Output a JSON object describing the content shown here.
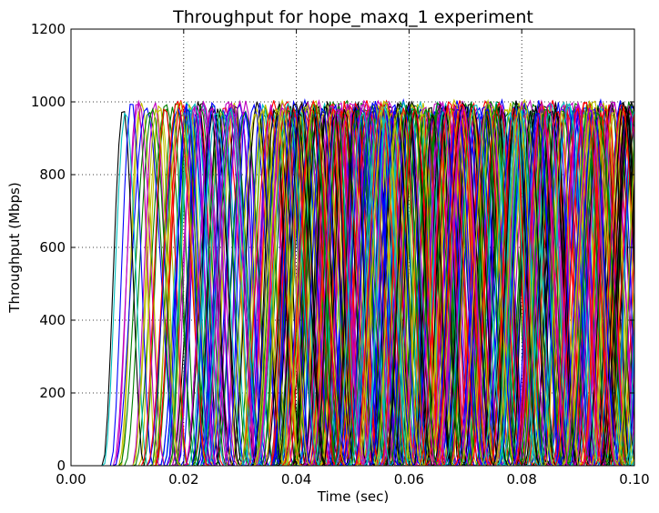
{
  "chart_data": {
    "type": "line",
    "title": "Throughput for hope_maxq_1 experiment",
    "xlabel": "Time (sec)",
    "ylabel": "Throughput (Mbps)",
    "xlim": [
      0.0,
      0.1
    ],
    "ylim": [
      0,
      1200
    ],
    "x_ticks": [
      "0.00",
      "0.02",
      "0.04",
      "0.06",
      "0.08",
      "0.10"
    ],
    "y_ticks": [
      "0",
      "200",
      "400",
      "600",
      "800",
      "1000",
      "1200"
    ],
    "grid": true,
    "legend": "none",
    "series_colors": [
      "#0000ff",
      "#008000",
      "#ff0000",
      "#00bfbf",
      "#bf00bf",
      "#bfbf00",
      "#000000"
    ],
    "flows": {
      "count": 160,
      "peak_mbps": 1000,
      "pulse_width_sec": 0.004,
      "start_range_sec": [
        0.0,
        0.05
      ],
      "period_range_sec": [
        0.012,
        0.03
      ]
    }
  }
}
